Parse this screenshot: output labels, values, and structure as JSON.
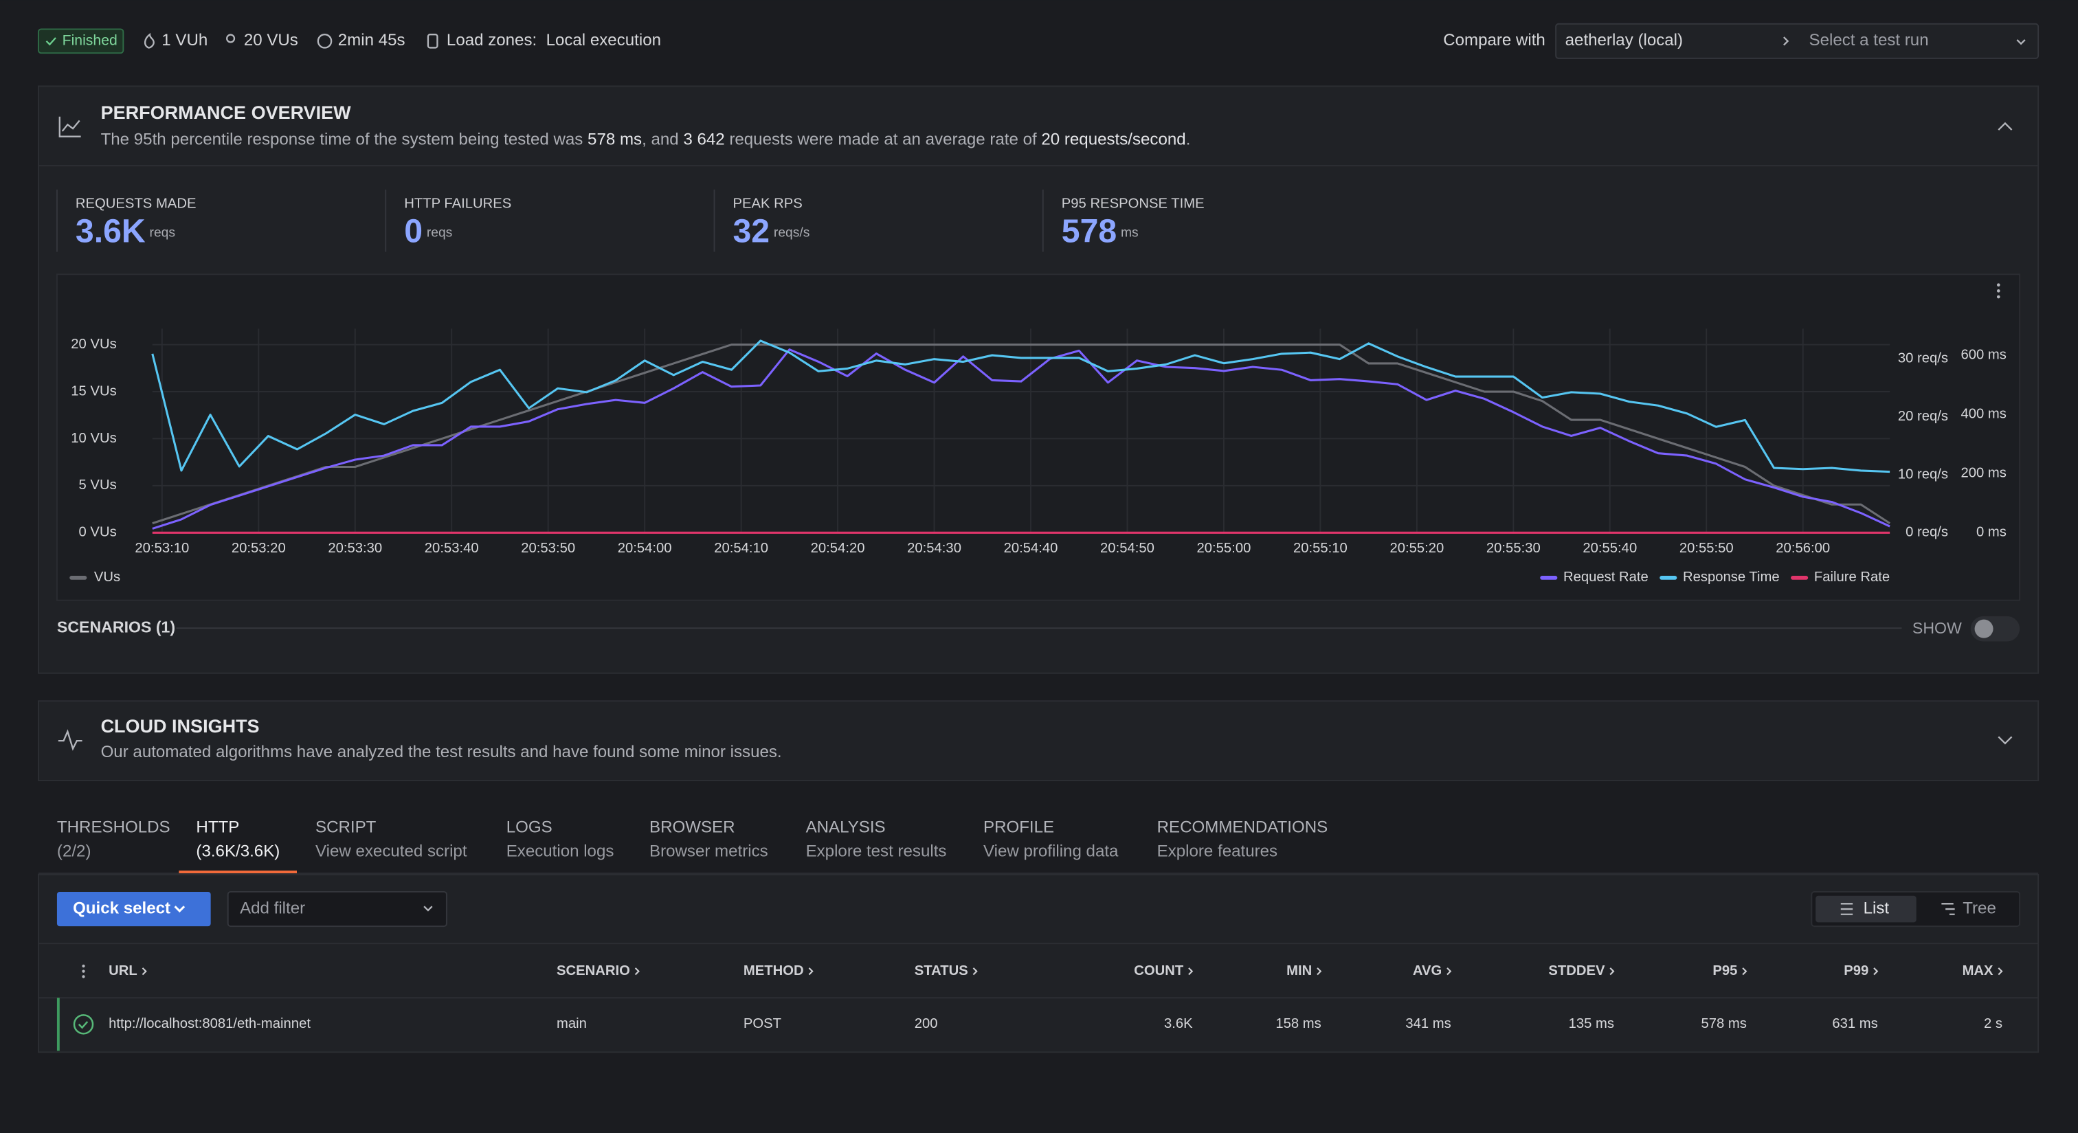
{
  "header": {
    "status": "Finished",
    "vuh": "1 VUh",
    "vus": "20 VUs",
    "duration": "2min 45s",
    "load_zones_label": "Load zones:",
    "load_zones": "Local execution",
    "compare_label": "Compare with",
    "compare_value": "aetherlay (local)",
    "select_placeholder": "Select a test run"
  },
  "performance": {
    "title": "PERFORMANCE OVERVIEW",
    "description": [
      "The 95th percentile response time of the system being tested was ",
      "578 ms",
      ", and ",
      "3 642",
      " requests were made at an average rate of ",
      "20 requests/second",
      "."
    ],
    "stats": [
      {
        "label": "REQUESTS MADE",
        "value": "3.6K",
        "unit": "reqs"
      },
      {
        "label": "HTTP FAILURES",
        "value": "0",
        "unit": "reqs"
      },
      {
        "label": "PEAK RPS",
        "value": "32",
        "unit": "reqs/s"
      },
      {
        "label": "P95 RESPONSE TIME",
        "value": "578",
        "unit": "ms"
      }
    ],
    "scenarios": "SCENARIOS (1)",
    "toggle": "SHOW"
  },
  "chart_data": {
    "type": "line",
    "legend": "bottom",
    "grid": true,
    "x": [
      9,
      12,
      15,
      18,
      21,
      24,
      27,
      30,
      33,
      36,
      39,
      42,
      45,
      48,
      51,
      54,
      57,
      60,
      63,
      66,
      69,
      72,
      75,
      78,
      81,
      84,
      87,
      90,
      93,
      96,
      99,
      102,
      105,
      108,
      111,
      114,
      117,
      120,
      123,
      126,
      129,
      132,
      135,
      138,
      141,
      144,
      147,
      150,
      153,
      156,
      159,
      162,
      165,
      168,
      171,
      174,
      177,
      180,
      183,
      186,
      189
    ],
    "xlim": [
      9,
      189
    ],
    "xticks": [
      {
        "value": 10,
        "label": "20:53:10"
      },
      {
        "value": 20,
        "label": "20:53:20"
      },
      {
        "value": 30,
        "label": "20:53:30"
      },
      {
        "value": 40,
        "label": "20:53:40"
      },
      {
        "value": 50,
        "label": "20:53:50"
      },
      {
        "value": 60,
        "label": "20:54:00"
      },
      {
        "value": 70,
        "label": "20:54:10"
      },
      {
        "value": 80,
        "label": "20:54:20"
      },
      {
        "value": 90,
        "label": "20:54:30"
      },
      {
        "value": 100,
        "label": "20:54:40"
      },
      {
        "value": 110,
        "label": "20:54:50"
      },
      {
        "value": 120,
        "label": "20:55:00"
      },
      {
        "value": 130,
        "label": "20:55:10"
      },
      {
        "value": 140,
        "label": "20:55:20"
      },
      {
        "value": 150,
        "label": "20:55:30"
      },
      {
        "value": 160,
        "label": "20:55:40"
      },
      {
        "value": 170,
        "label": "20:55:50"
      },
      {
        "value": 180,
        "label": "20:56:00"
      }
    ],
    "ylim": [
      0,
      21.7
    ],
    "yticks": [
      {
        "value": 0,
        "label": "0 VUs"
      },
      {
        "value": 5,
        "label": "5 VUs"
      },
      {
        "value": 10,
        "label": "10 VUs"
      },
      {
        "value": 15,
        "label": "15 VUs"
      },
      {
        "value": 20,
        "label": "20 VUs"
      }
    ],
    "y2lim": [
      0,
      35.2
    ],
    "y2ticks": [
      {
        "value": 0,
        "label": "0 req/s"
      },
      {
        "value": 10,
        "label": "10 req/s"
      },
      {
        "value": 20,
        "label": "20 req/s"
      },
      {
        "value": 30,
        "label": "30 req/s"
      }
    ],
    "y3lim": [
      0,
      690
    ],
    "y3ticks": [
      {
        "value": 0,
        "label": "0 ms"
      },
      {
        "value": 200,
        "label": "200 ms"
      },
      {
        "value": 400,
        "label": "400 ms"
      },
      {
        "value": 600,
        "label": "600 ms"
      }
    ],
    "series": [
      {
        "name": "VUs",
        "color": "#6b6d73",
        "axis": "y",
        "values": [
          1,
          2,
          3,
          4,
          5,
          6,
          7,
          7,
          8,
          9,
          10,
          11,
          12,
          13,
          14,
          15,
          16,
          17,
          18,
          19,
          20,
          20,
          20,
          20,
          20,
          20,
          20,
          20,
          20,
          20,
          20,
          20,
          20,
          20,
          20,
          20,
          20,
          20,
          20,
          20,
          20,
          20,
          18,
          18,
          17,
          16,
          15,
          15,
          14,
          12,
          12,
          11,
          10,
          9,
          8,
          7,
          5,
          4,
          3,
          3,
          1
        ]
      },
      {
        "name": "Request Rate",
        "color": "#7c62ff",
        "axis": "y2",
        "values": [
          0.7,
          2.3,
          4.8,
          6.4,
          8,
          9.6,
          11.2,
          12.6,
          13.3,
          15.1,
          15.1,
          18.3,
          18.3,
          19.2,
          21.3,
          22.2,
          22.9,
          22.4,
          24.9,
          27.7,
          25.2,
          25.4,
          31.6,
          29.5,
          27,
          30.9,
          28.1,
          25.9,
          30.4,
          26.3,
          26.1,
          30,
          31.4,
          25.9,
          29.7,
          28.6,
          28.4,
          27.9,
          28.6,
          28.1,
          26.3,
          26.5,
          26.1,
          25.6,
          22.9,
          24.5,
          23.1,
          20.8,
          18.3,
          16.7,
          18.1,
          15.8,
          13.7,
          13.3,
          11.9,
          9.2,
          7.8,
          6.2,
          5.3,
          3.4,
          1.1
        ]
      },
      {
        "name": "Response Time",
        "color": "#56c6f2",
        "axis": "y3",
        "values": [
          605,
          210,
          399,
          224,
          327,
          282,
          336,
          399,
          367,
          412,
          439,
          510,
          551,
          421,
          488,
          475,
          515,
          582,
          533,
          578,
          551,
          649,
          609,
          546,
          555,
          582,
          569,
          587,
          578,
          600,
          591,
          591,
          591,
          546,
          555,
          569,
          600,
          573,
          587,
          605,
          609,
          587,
          640,
          596,
          560,
          528,
          528,
          528,
          457,
          475,
          470,
          443,
          430,
          403,
          358,
          381,
          219,
          215,
          219,
          210,
          206
        ]
      },
      {
        "name": "Failure Rate",
        "color": "#e0356b",
        "axis": "y2",
        "values": [
          0,
          0,
          0,
          0,
          0,
          0,
          0,
          0,
          0,
          0,
          0,
          0,
          0,
          0,
          0,
          0,
          0,
          0,
          0,
          0,
          0,
          0,
          0,
          0,
          0,
          0,
          0,
          0,
          0,
          0,
          0,
          0,
          0,
          0,
          0,
          0,
          0,
          0,
          0,
          0,
          0,
          0,
          0,
          0,
          0,
          0,
          0,
          0,
          0,
          0,
          0,
          0,
          0,
          0,
          0,
          0,
          0,
          0,
          0,
          0,
          0
        ]
      }
    ]
  },
  "insights": {
    "title": "CLOUD INSIGHTS",
    "description": "Our automated algorithms have analyzed the test results and have found some minor issues."
  },
  "tabs": [
    {
      "title": "THRESHOLDS",
      "subtitle": "(2/2)"
    },
    {
      "title": "HTTP",
      "subtitle": "(3.6K/3.6K)"
    },
    {
      "title": "SCRIPT",
      "subtitle": "View executed script"
    },
    {
      "title": "LOGS",
      "subtitle": "Execution logs"
    },
    {
      "title": "BROWSER",
      "subtitle": "Browser metrics"
    },
    {
      "title": "ANALYSIS",
      "subtitle": "Explore test results"
    },
    {
      "title": "PROFILE",
      "subtitle": "View profiling data"
    },
    {
      "title": "RECOMMENDATIONS",
      "subtitle": "Explore features"
    }
  ],
  "toolbar": {
    "quick_select": "Quick select",
    "filter_placeholder": "Add filter",
    "view_list": "List",
    "view_tree": "Tree"
  },
  "table": {
    "columns": [
      "URL",
      "SCENARIO",
      "METHOD",
      "STATUS",
      "COUNT",
      "MIN",
      "AVG",
      "STDDEV",
      "P95",
      "P99",
      "MAX"
    ],
    "rows": [
      [
        "http://localhost:8081/eth-mainnet",
        "main",
        "POST",
        "200",
        "3.6K",
        "158 ms",
        "341 ms",
        "135 ms",
        "578 ms",
        "631 ms",
        "2 s"
      ]
    ]
  }
}
